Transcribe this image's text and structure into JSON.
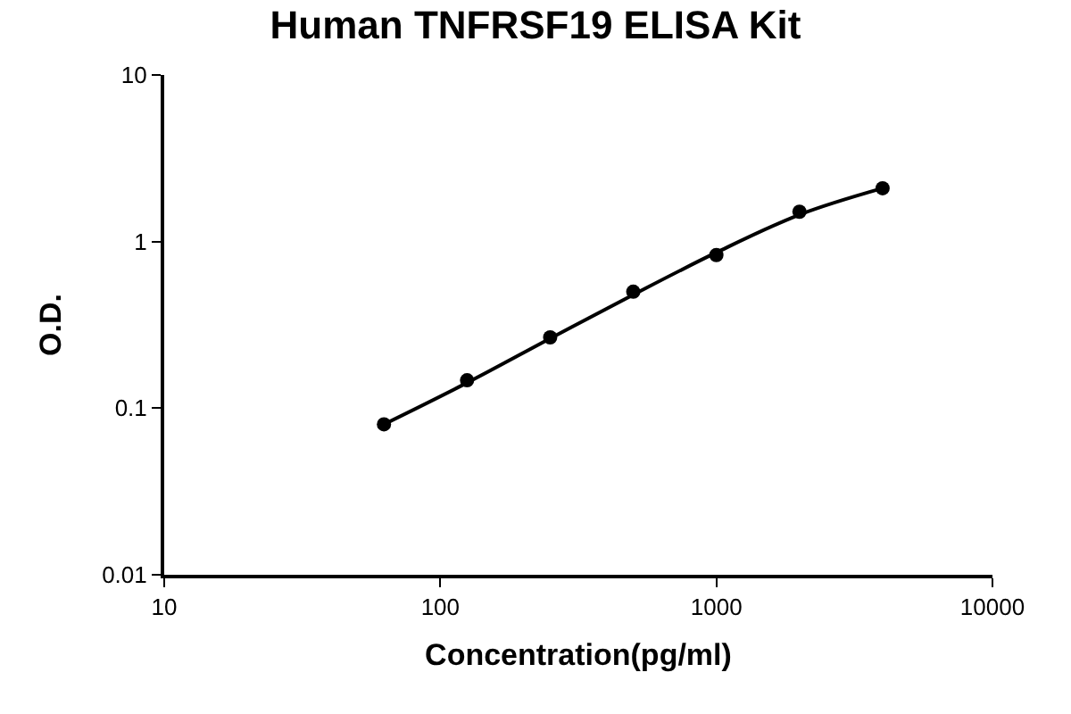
{
  "chart_data": {
    "type": "scatter",
    "title": "Human TNFRSF19 ELISA Kit",
    "xlabel": "Concentration(pg/ml)",
    "ylabel": "O.D.",
    "log": "xy",
    "grid": false,
    "marker": "circle",
    "xlim": [
      10,
      10000
    ],
    "xticks": [
      10,
      100,
      1000,
      10000
    ],
    "ylim": [
      0.01,
      10
    ],
    "yticks": [
      0.01,
      0.1,
      1,
      10
    ],
    "series": [
      {
        "type": "scatter",
        "color": "#000000",
        "x": [
          62.5,
          125,
          250,
          500,
          1000,
          2000,
          4000
        ],
        "values": [
          0.08,
          0.147,
          0.266,
          0.5,
          0.83,
          1.51,
          2.09
        ]
      },
      {
        "type": "line",
        "color": "#000000",
        "line_style": "solid",
        "marker": "none",
        "x": [
          62.5,
          125,
          250,
          500,
          1000,
          2000,
          4000
        ],
        "values": [
          0.08,
          0.142,
          0.262,
          0.48,
          0.86,
          1.45,
          2.09
        ]
      }
    ]
  }
}
